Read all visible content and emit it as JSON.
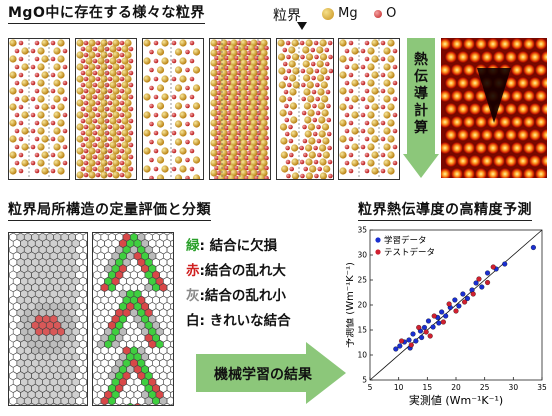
{
  "top": {
    "title": "MgO中に存在する様々な粒界",
    "gb_label": "粒界",
    "legend": [
      {
        "label": "Mg",
        "color": "#d9a520"
      },
      {
        "label": "O",
        "color": "#d94040"
      }
    ]
  },
  "arrow1": {
    "text": "熱伝導計算",
    "color": "#8cc77a"
  },
  "bottom_left": {
    "title": "粒界局所構造の定量評価と分類",
    "classes": [
      {
        "key": "緑",
        "desc": "結合に欠損",
        "key_color": "#2aa02a"
      },
      {
        "key": "赤",
        "desc": "結合の乱れ大",
        "key_color": "#d02020"
      },
      {
        "key": "灰",
        "desc": "結合の乱れ小",
        "key_color": "#888888"
      },
      {
        "key": "白",
        "desc": "きれいな結合",
        "key_color": "#111111"
      }
    ]
  },
  "arrow2": {
    "text": "機械学習の結果",
    "color": "#8cc77a"
  },
  "bottom_right": {
    "title": "粒界熱伝導度の高精度予測",
    "chart_data": {
      "type": "scatter",
      "xlabel": "実測値 (Wm⁻¹K⁻¹)",
      "ylabel": "予測値 (Wm⁻¹K⁻¹)",
      "xlim": [
        5,
        35
      ],
      "ylim": [
        5,
        35
      ],
      "ticks": [
        5,
        10,
        15,
        20,
        25,
        30,
        35
      ],
      "legend_placement": "top-left",
      "series": [
        {
          "name": "学習データ",
          "color": "#1a2fd0",
          "points": [
            [
              9.5,
              11.2
            ],
            [
              10.2,
              11.8
            ],
            [
              11,
              12.6
            ],
            [
              11.8,
              13
            ],
            [
              12.5,
              14.2
            ],
            [
              13,
              12.8
            ],
            [
              13.8,
              14.8
            ],
            [
              14.5,
              15.5
            ],
            [
              15.2,
              16.8
            ],
            [
              16,
              15.6
            ],
            [
              16.8,
              17.5
            ],
            [
              17.5,
              18.6
            ],
            [
              18.2,
              17.8
            ],
            [
              19,
              19.5
            ],
            [
              19.8,
              21
            ],
            [
              20.5,
              19.8
            ],
            [
              21.2,
              22.2
            ],
            [
              22,
              21.3
            ],
            [
              22.8,
              23
            ],
            [
              23.5,
              24.4
            ],
            [
              24.5,
              23.6
            ],
            [
              25.5,
              26.4
            ],
            [
              27,
              27.2
            ],
            [
              28.5,
              28.2
            ],
            [
              33.5,
              31.5
            ],
            [
              12,
              11.4
            ],
            [
              14,
              13.5
            ],
            [
              17,
              16.4
            ]
          ]
        },
        {
          "name": "テストデータ",
          "color": "#d02030",
          "points": [
            [
              10.5,
              12.8
            ],
            [
              12.2,
              12
            ],
            [
              13.5,
              15.5
            ],
            [
              14.8,
              14.6
            ],
            [
              16.2,
              17.8
            ],
            [
              17.8,
              16.6
            ],
            [
              18.8,
              20.2
            ],
            [
              20,
              18.8
            ],
            [
              21.5,
              20.6
            ],
            [
              23,
              22.2
            ],
            [
              24,
              25.2
            ],
            [
              25.5,
              24.5
            ],
            [
              26.5,
              27.6
            ],
            [
              15.5,
              13.8
            ]
          ]
        }
      ]
    }
  }
}
